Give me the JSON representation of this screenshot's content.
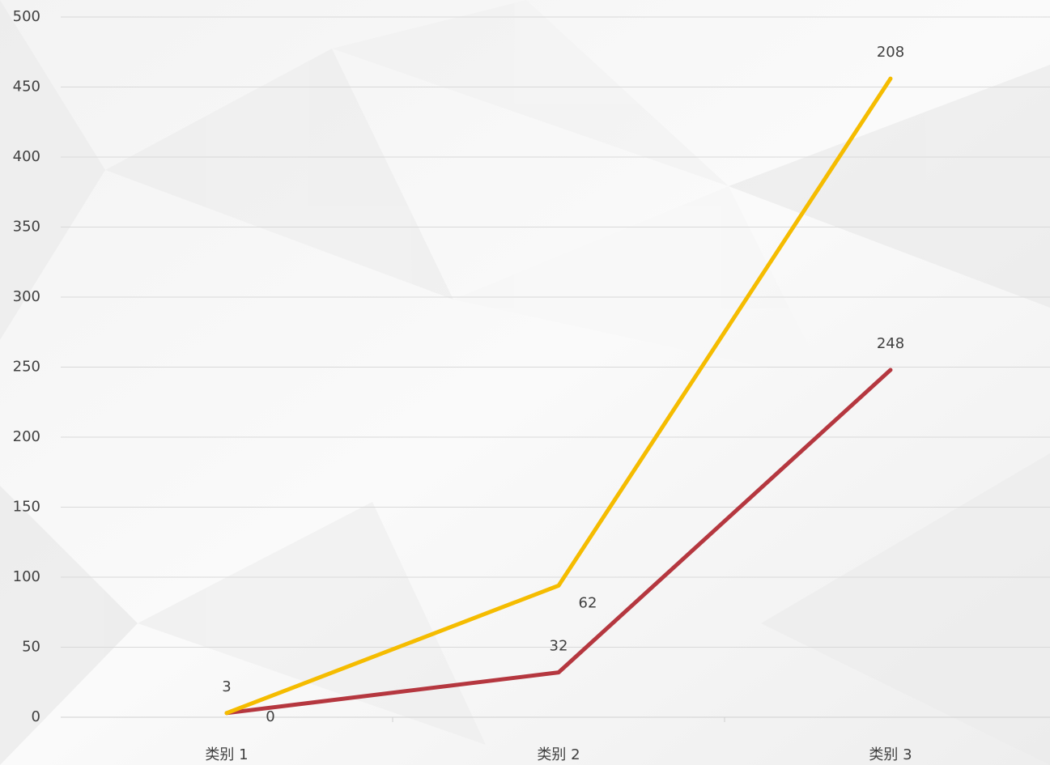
{
  "chart_data": {
    "type": "line",
    "stacked": true,
    "categories": [
      "类别 1",
      "类别 2",
      "类别 3"
    ],
    "series": [
      {
        "color": "#b5373f",
        "values": [
          3,
          32,
          248
        ]
      },
      {
        "color": "#f5bc00",
        "values": [
          0,
          62,
          208
        ]
      }
    ],
    "ylim": [
      0,
      500
    ],
    "yticks": [
      0,
      50,
      100,
      150,
      200,
      250,
      300,
      350,
      400,
      450,
      500
    ],
    "grid": true
  }
}
